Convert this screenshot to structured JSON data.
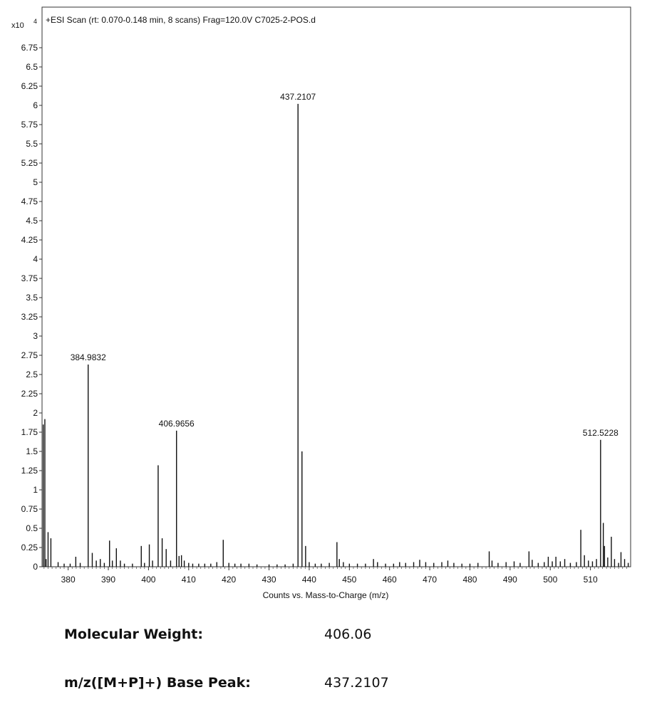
{
  "chart_data": {
    "type": "bar",
    "title": "+ESI Scan (rt: 0.070-0.148 min, 8 scans) Frag=120.0V C7025-2-POS.d",
    "y_multiplier": "x10",
    "y_exponent": "4",
    "xlabel": "Counts vs. Mass-to-Charge (m/z)",
    "ylabel": "",
    "xlim": [
      373.5,
      520
    ],
    "ylim": [
      0,
      7.0
    ],
    "x_ticks": [
      380,
      390,
      400,
      410,
      420,
      430,
      440,
      450,
      460,
      470,
      480,
      490,
      500,
      510
    ],
    "y_ticks": [
      "0",
      "0.25",
      "0.5",
      "0.75",
      "1",
      "1.25",
      "1.5",
      "1.75",
      "2",
      "2.25",
      "2.5",
      "2.75",
      "3",
      "3.25",
      "3.5",
      "3.75",
      "4",
      "4.25",
      "4.5",
      "4.75",
      "5",
      "5.25",
      "5.5",
      "5.75",
      "6",
      "6.25",
      "6.5",
      "6.75"
    ],
    "peaks": [
      {
        "mz": 373.8,
        "intensity": 1.85
      },
      {
        "mz": 374.2,
        "intensity": 1.92
      },
      {
        "mz": 374.5,
        "intensity": 0.1
      },
      {
        "mz": 375.0,
        "intensity": 0.45
      },
      {
        "mz": 375.7,
        "intensity": 0.37
      },
      {
        "mz": 377.5,
        "intensity": 0.06
      },
      {
        "mz": 379.0,
        "intensity": 0.04
      },
      {
        "mz": 380.5,
        "intensity": 0.04
      },
      {
        "mz": 381.9,
        "intensity": 0.13
      },
      {
        "mz": 383.0,
        "intensity": 0.05
      },
      {
        "mz": 384.98,
        "intensity": 2.63
      },
      {
        "mz": 386.0,
        "intensity": 0.18
      },
      {
        "mz": 387.0,
        "intensity": 0.08
      },
      {
        "mz": 388.0,
        "intensity": 0.1
      },
      {
        "mz": 389.0,
        "intensity": 0.05
      },
      {
        "mz": 390.3,
        "intensity": 0.34
      },
      {
        "mz": 391.0,
        "intensity": 0.08
      },
      {
        "mz": 392.0,
        "intensity": 0.24
      },
      {
        "mz": 393.0,
        "intensity": 0.08
      },
      {
        "mz": 394.0,
        "intensity": 0.04
      },
      {
        "mz": 396.0,
        "intensity": 0.04
      },
      {
        "mz": 398.2,
        "intensity": 0.27
      },
      {
        "mz": 399.0,
        "intensity": 0.05
      },
      {
        "mz": 400.2,
        "intensity": 0.29
      },
      {
        "mz": 401.0,
        "intensity": 0.08
      },
      {
        "mz": 402.4,
        "intensity": 1.32
      },
      {
        "mz": 403.4,
        "intensity": 0.37
      },
      {
        "mz": 404.4,
        "intensity": 0.23
      },
      {
        "mz": 405.5,
        "intensity": 0.08
      },
      {
        "mz": 406.97,
        "intensity": 1.77
      },
      {
        "mz": 407.6,
        "intensity": 0.14
      },
      {
        "mz": 408.2,
        "intensity": 0.15
      },
      {
        "mz": 408.9,
        "intensity": 0.08
      },
      {
        "mz": 410.0,
        "intensity": 0.05
      },
      {
        "mz": 411.0,
        "intensity": 0.04
      },
      {
        "mz": 412.5,
        "intensity": 0.04
      },
      {
        "mz": 414.0,
        "intensity": 0.04
      },
      {
        "mz": 415.5,
        "intensity": 0.04
      },
      {
        "mz": 417.0,
        "intensity": 0.06
      },
      {
        "mz": 418.6,
        "intensity": 0.35
      },
      {
        "mz": 420.0,
        "intensity": 0.05
      },
      {
        "mz": 421.5,
        "intensity": 0.04
      },
      {
        "mz": 423.0,
        "intensity": 0.04
      },
      {
        "mz": 425.0,
        "intensity": 0.04
      },
      {
        "mz": 427.0,
        "intensity": 0.03
      },
      {
        "mz": 430.0,
        "intensity": 0.03
      },
      {
        "mz": 432.0,
        "intensity": 0.03
      },
      {
        "mz": 434.0,
        "intensity": 0.03
      },
      {
        "mz": 436.0,
        "intensity": 0.04
      },
      {
        "mz": 437.21,
        "intensity": 6.02
      },
      {
        "mz": 438.2,
        "intensity": 1.5
      },
      {
        "mz": 439.1,
        "intensity": 0.27
      },
      {
        "mz": 440.0,
        "intensity": 0.06
      },
      {
        "mz": 441.5,
        "intensity": 0.04
      },
      {
        "mz": 443.0,
        "intensity": 0.04
      },
      {
        "mz": 445.0,
        "intensity": 0.05
      },
      {
        "mz": 446.9,
        "intensity": 0.32
      },
      {
        "mz": 447.5,
        "intensity": 0.1
      },
      {
        "mz": 448.5,
        "intensity": 0.06
      },
      {
        "mz": 450.0,
        "intensity": 0.04
      },
      {
        "mz": 452.0,
        "intensity": 0.04
      },
      {
        "mz": 454.0,
        "intensity": 0.04
      },
      {
        "mz": 456.0,
        "intensity": 0.1
      },
      {
        "mz": 457.0,
        "intensity": 0.06
      },
      {
        "mz": 459.0,
        "intensity": 0.04
      },
      {
        "mz": 461.0,
        "intensity": 0.04
      },
      {
        "mz": 462.5,
        "intensity": 0.06
      },
      {
        "mz": 464.0,
        "intensity": 0.05
      },
      {
        "mz": 466.0,
        "intensity": 0.06
      },
      {
        "mz": 467.5,
        "intensity": 0.09
      },
      {
        "mz": 469.0,
        "intensity": 0.06
      },
      {
        "mz": 471.0,
        "intensity": 0.05
      },
      {
        "mz": 473.0,
        "intensity": 0.06
      },
      {
        "mz": 474.5,
        "intensity": 0.08
      },
      {
        "mz": 476.0,
        "intensity": 0.05
      },
      {
        "mz": 478.0,
        "intensity": 0.04
      },
      {
        "mz": 480.0,
        "intensity": 0.04
      },
      {
        "mz": 482.0,
        "intensity": 0.05
      },
      {
        "mz": 484.8,
        "intensity": 0.2
      },
      {
        "mz": 485.5,
        "intensity": 0.08
      },
      {
        "mz": 487.0,
        "intensity": 0.05
      },
      {
        "mz": 489.0,
        "intensity": 0.06
      },
      {
        "mz": 491.0,
        "intensity": 0.07
      },
      {
        "mz": 492.5,
        "intensity": 0.05
      },
      {
        "mz": 494.7,
        "intensity": 0.2
      },
      {
        "mz": 495.5,
        "intensity": 0.09
      },
      {
        "mz": 497.0,
        "intensity": 0.05
      },
      {
        "mz": 498.5,
        "intensity": 0.06
      },
      {
        "mz": 499.5,
        "intensity": 0.13
      },
      {
        "mz": 500.5,
        "intensity": 0.07
      },
      {
        "mz": 501.4,
        "intensity": 0.13
      },
      {
        "mz": 502.5,
        "intensity": 0.07
      },
      {
        "mz": 503.6,
        "intensity": 0.1
      },
      {
        "mz": 505.0,
        "intensity": 0.05
      },
      {
        "mz": 506.5,
        "intensity": 0.06
      },
      {
        "mz": 507.6,
        "intensity": 0.48
      },
      {
        "mz": 508.5,
        "intensity": 0.15
      },
      {
        "mz": 509.5,
        "intensity": 0.08
      },
      {
        "mz": 510.5,
        "intensity": 0.07
      },
      {
        "mz": 511.5,
        "intensity": 0.1
      },
      {
        "mz": 512.52,
        "intensity": 1.65
      },
      {
        "mz": 513.2,
        "intensity": 0.57
      },
      {
        "mz": 513.5,
        "intensity": 0.27
      },
      {
        "mz": 514.3,
        "intensity": 0.12
      },
      {
        "mz": 515.2,
        "intensity": 0.39
      },
      {
        "mz": 516.0,
        "intensity": 0.1
      },
      {
        "mz": 517.0,
        "intensity": 0.05
      },
      {
        "mz": 517.6,
        "intensity": 0.19
      },
      {
        "mz": 518.5,
        "intensity": 0.1
      },
      {
        "mz": 519.4,
        "intensity": 0.05
      }
    ],
    "peak_labels": [
      {
        "text": "384.9832",
        "mz": 384.98,
        "intensity": 2.63
      },
      {
        "text": "406.9656",
        "mz": 406.97,
        "intensity": 1.77
      },
      {
        "text": "437.2107",
        "mz": 437.21,
        "intensity": 6.02
      },
      {
        "text": "512.5228",
        "mz": 512.52,
        "intensity": 1.65
      }
    ]
  },
  "info": {
    "molecular_weight_label": "Molecular Weight:",
    "molecular_weight_value": "406.06",
    "base_peak_label": "m/z([M+P]+) Base Peak:",
    "base_peak_value": "437.2107"
  }
}
